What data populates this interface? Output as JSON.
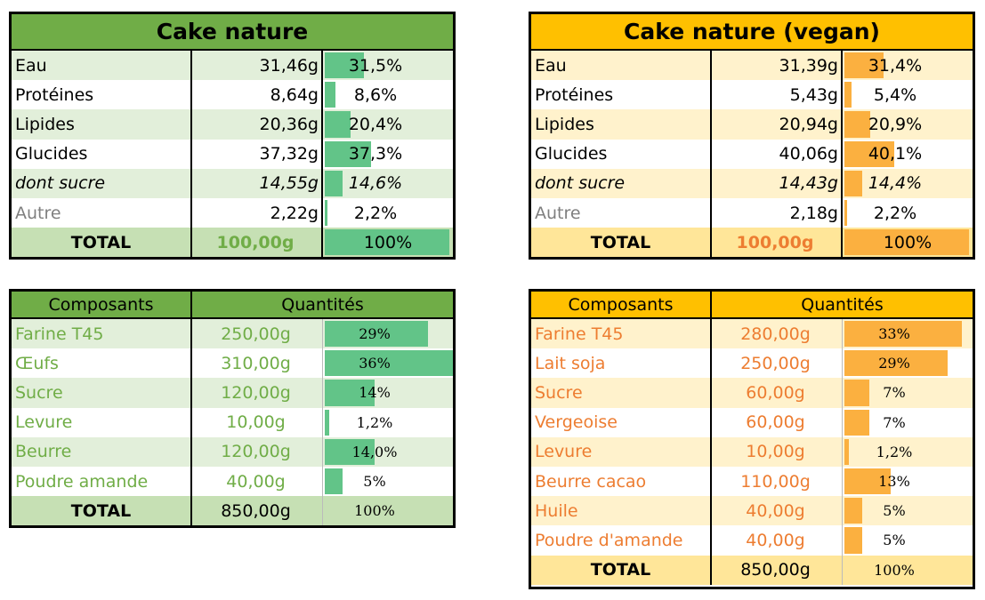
{
  "colors": {
    "green_header": "#70ad47",
    "green_light": "#e2efda",
    "green_total": "#c6e0b4",
    "green_bar": "#62c488",
    "green_text": "#70ad47",
    "orange_header": "#ffc000",
    "orange_light": "#fff2cc",
    "orange_total": "#ffe699",
    "orange_bar": "#fbb040",
    "orange_text": "#ed7d31"
  },
  "nutrition": [
    {
      "title": "Cake nature",
      "rows": [
        {
          "label": "Eau",
          "value": "31,46g",
          "pct": "31,5%",
          "frac": 0.315,
          "style": "normal"
        },
        {
          "label": "Protéines",
          "value": "8,64g",
          "pct": "8,6%",
          "frac": 0.086,
          "style": "normal"
        },
        {
          "label": "Lipides",
          "value": "20,36g",
          "pct": "20,4%",
          "frac": 0.204,
          "style": "normal"
        },
        {
          "label": "Glucides",
          "value": "37,32g",
          "pct": "37,3%",
          "frac": 0.373,
          "style": "normal"
        },
        {
          "label": "dont sucre",
          "value": "14,55g",
          "pct": "14,6%",
          "frac": 0.146,
          "style": "italic"
        },
        {
          "label": "Autre",
          "value": "2,22g",
          "pct": "2,2%",
          "frac": 0.022,
          "style": "grey"
        }
      ],
      "total": {
        "label": "TOTAL",
        "value": "100,00g",
        "pct": "100%",
        "frac": 1.0
      }
    },
    {
      "title": "Cake nature (vegan)",
      "rows": [
        {
          "label": "Eau",
          "value": "31,39g",
          "pct": "31,4%",
          "frac": 0.314,
          "style": "normal"
        },
        {
          "label": "Protéines",
          "value": "5,43g",
          "pct": "5,4%",
          "frac": 0.054,
          "style": "normal"
        },
        {
          "label": "Lipides",
          "value": "20,94g",
          "pct": "20,9%",
          "frac": 0.209,
          "style": "normal"
        },
        {
          "label": "Glucides",
          "value": "40,06g",
          "pct": "40,1%",
          "frac": 0.401,
          "style": "normal"
        },
        {
          "label": "dont sucre",
          "value": "14,43g",
          "pct": "14,4%",
          "frac": 0.144,
          "style": "italic"
        },
        {
          "label": "Autre",
          "value": "2,18g",
          "pct": "2,2%",
          "frac": 0.022,
          "style": "grey"
        }
      ],
      "total": {
        "label": "TOTAL",
        "value": "100,00g",
        "pct": "100%",
        "frac": 1.0
      }
    }
  ],
  "composition": [
    {
      "header": {
        "col1": "Composants",
        "col2": "Quantités"
      },
      "rows": [
        {
          "label": "Farine T45",
          "value": "250,00g",
          "pct": "29%",
          "frac": 0.29
        },
        {
          "label": "Œufs",
          "value": "310,00g",
          "pct": "36%",
          "frac": 0.36
        },
        {
          "label": "Sucre",
          "value": "120,00g",
          "pct": "14%",
          "frac": 0.14
        },
        {
          "label": "Levure",
          "value": "10,00g",
          "pct": "1,2%",
          "frac": 0.012
        },
        {
          "label": "Beurre",
          "value": "120,00g",
          "pct": "14,0%",
          "frac": 0.14
        },
        {
          "label": "Poudre amande",
          "value": "40,00g",
          "pct": "5%",
          "frac": 0.05
        }
      ],
      "total": {
        "label": "TOTAL",
        "value": "850,00g",
        "pct": "100%"
      }
    },
    {
      "header": {
        "col1": "Composants",
        "col2": "Quantités"
      },
      "rows": [
        {
          "label": "Farine T45",
          "value": "280,00g",
          "pct": "33%",
          "frac": 0.33
        },
        {
          "label": "Lait soja",
          "value": "250,00g",
          "pct": "29%",
          "frac": 0.29
        },
        {
          "label": "Sucre",
          "value": "60,00g",
          "pct": "7%",
          "frac": 0.07
        },
        {
          "label": "Vergeoise",
          "value": "60,00g",
          "pct": "7%",
          "frac": 0.07
        },
        {
          "label": "Levure",
          "value": "10,00g",
          "pct": "1,2%",
          "frac": 0.012
        },
        {
          "label": "Beurre cacao",
          "value": "110,00g",
          "pct": "13%",
          "frac": 0.13
        },
        {
          "label": "Huile",
          "value": "40,00g",
          "pct": "5%",
          "frac": 0.05
        },
        {
          "label": "Poudre d'amande",
          "value": "40,00g",
          "pct": "5%",
          "frac": 0.05
        }
      ],
      "total": {
        "label": "TOTAL",
        "value": "850,00g",
        "pct": "100%"
      }
    }
  ]
}
